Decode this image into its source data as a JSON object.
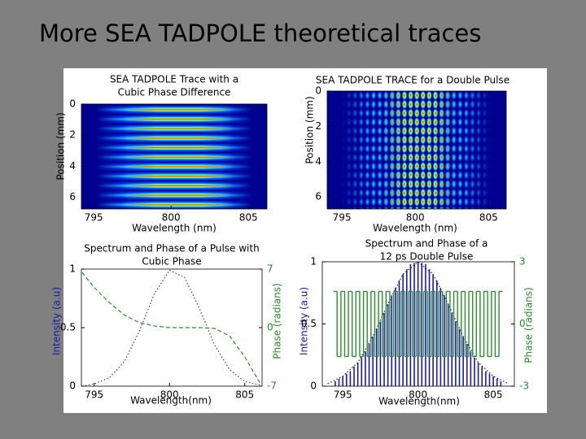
{
  "title": "More SEA TADPOLE theoretical traces",
  "chart_data": [
    {
      "type": "heatmap",
      "title": [
        "SEA TADPOLE Trace with a",
        "Cubic Phase Difference"
      ],
      "xlabel": "Wavelength (nm)",
      "ylabel": "Position (mm)",
      "xlim": [
        794.2,
        806.2
      ],
      "ylim": [
        0,
        6.75
      ],
      "y_inverted": true,
      "xticks": [
        795,
        800,
        805
      ],
      "yticks": [
        0,
        2,
        4,
        6
      ]
    },
    {
      "type": "heatmap",
      "title": [
        "SEA TADPOLE TRACE for a Double Pulse"
      ],
      "xlabel": "Wavelength (nm)",
      "ylabel": "Position (mm)",
      "xlim": [
        794.0,
        806.2
      ],
      "ylim": [
        0,
        6.68
      ],
      "y_inverted": true,
      "xticks": [
        795,
        800,
        805
      ],
      "yticks": [
        0,
        2,
        4,
        6
      ]
    },
    {
      "type": "line",
      "title": [
        "Spectrum and Phase of a Pulse with",
        "Cubic Phase"
      ],
      "xlabel": "Wavelength(nm)",
      "ylabel": "Intensity (a.u)",
      "y2label": "Phase (radians)",
      "xlim": [
        794.15,
        806.15
      ],
      "ylim": [
        0,
        1
      ],
      "y2lim": [
        -7,
        7
      ],
      "xticks": [
        795,
        800,
        805
      ],
      "yticks": [
        0,
        0.5,
        1
      ],
      "y2ticks": [
        -7,
        0,
        7
      ],
      "series": [
        {
          "color": "#444444",
          "line_style": "dotted",
          "x": [
            794.2,
            795,
            796,
            797,
            798,
            799,
            800,
            801,
            802,
            803,
            804,
            805,
            806
          ],
          "values": [
            0,
            0.02,
            0.07,
            0.21,
            0.47,
            0.79,
            0.99,
            0.93,
            0.66,
            0.35,
            0.14,
            0.04,
            0.01
          ]
        },
        {
          "color": "#2e8b2e",
          "line_style": "dashed",
          "axis": "y2",
          "x": [
            794.2,
            795,
            796,
            797,
            798,
            799,
            800,
            801,
            802,
            803,
            804,
            805,
            806
          ],
          "values": [
            6.6,
            4.8,
            3.0,
            1.5,
            0.6,
            0.2,
            0,
            0,
            0,
            -0.1,
            -1.0,
            -3.5,
            -6.6
          ]
        }
      ]
    },
    {
      "type": "line",
      "title": [
        "Spectrum and Phase of a",
        "12 ps Double Pulse"
      ],
      "xlabel": "Wavelength(nm)",
      "ylabel": "Intensity (a.u)",
      "y2label": "Phase (radians)",
      "xlim": [
        793.64,
        806.4
      ],
      "ylim": [
        0,
        1
      ],
      "y2lim": [
        -3,
        3
      ],
      "xticks": [
        795,
        800,
        805
      ],
      "yticks": [
        0,
        0.5,
        1
      ],
      "y2ticks": [
        -3,
        0,
        3
      ],
      "series": [
        {
          "color": "#1a1aa8",
          "line_style": "stem",
          "x": [
            794.5,
            794.75,
            795,
            795.25,
            795.5,
            795.75,
            796,
            796.25,
            796.5,
            796.75,
            797,
            797.25,
            797.5,
            797.75,
            798,
            798.25,
            798.5,
            798.75,
            799,
            799.25,
            799.5,
            799.75,
            800,
            800.25,
            800.5,
            800.75,
            801,
            801.25,
            801.5,
            801.75,
            802,
            802.25,
            802.5,
            802.75,
            803,
            803.25,
            803.5,
            803.75,
            804,
            804.25,
            804.5,
            804.75,
            805,
            805.25,
            805.5
          ],
          "values": [
            0.04,
            0.06,
            0.08,
            0.1,
            0.12,
            0.16,
            0.19,
            0.23,
            0.28,
            0.34,
            0.4,
            0.46,
            0.52,
            0.59,
            0.66,
            0.73,
            0.79,
            0.85,
            0.9,
            0.94,
            0.98,
            0.99,
            1.0,
            0.99,
            0.98,
            0.94,
            0.9,
            0.85,
            0.79,
            0.73,
            0.66,
            0.59,
            0.52,
            0.46,
            0.4,
            0.34,
            0.28,
            0.23,
            0.19,
            0.16,
            0.12,
            0.1,
            0.08,
            0.06,
            0.04
          ]
        },
        {
          "color": "#222222",
          "line_style": "dotted",
          "x": [
            794,
            795,
            796,
            797,
            798,
            799,
            800,
            801,
            802,
            803,
            804,
            805,
            806
          ],
          "values": [
            0.02,
            0.08,
            0.19,
            0.4,
            0.66,
            0.9,
            1.0,
            0.9,
            0.66,
            0.4,
            0.19,
            0.08,
            0.02
          ]
        },
        {
          "color": "#2e8b2e",
          "line_style": "step",
          "axis": "y2",
          "x": [
            794.5,
            794.75,
            795,
            795.25,
            795.5,
            795.75,
            796,
            796.25,
            796.5,
            796.75,
            797,
            797.25,
            797.5,
            797.75,
            798,
            798.25,
            798.5,
            798.75,
            799,
            799.25,
            799.5,
            799.75,
            800,
            800.25,
            800.5,
            800.75,
            801,
            801.25,
            801.5,
            801.75,
            802,
            802.25,
            802.5,
            802.75,
            803,
            803.25,
            803.5,
            803.75,
            804,
            804.25,
            804.5,
            804.75,
            805,
            805.25,
            805.5
          ],
          "values": [
            1.57,
            -1.57,
            1.57,
            -1.57,
            1.57,
            -1.57,
            1.57,
            -1.57,
            1.57,
            -1.57,
            1.57,
            -1.57,
            1.57,
            -1.57,
            1.57,
            -1.57,
            1.57,
            -1.57,
            1.57,
            -1.57,
            1.57,
            -1.57,
            1.57,
            -1.57,
            1.57,
            -1.57,
            1.57,
            -1.57,
            1.57,
            -1.57,
            1.57,
            -1.57,
            1.57,
            -1.57,
            1.57,
            -1.57,
            1.57,
            -1.57,
            1.57,
            -1.57,
            1.57,
            -1.57,
            1.57,
            -1.57,
            1.57
          ]
        }
      ]
    }
  ]
}
